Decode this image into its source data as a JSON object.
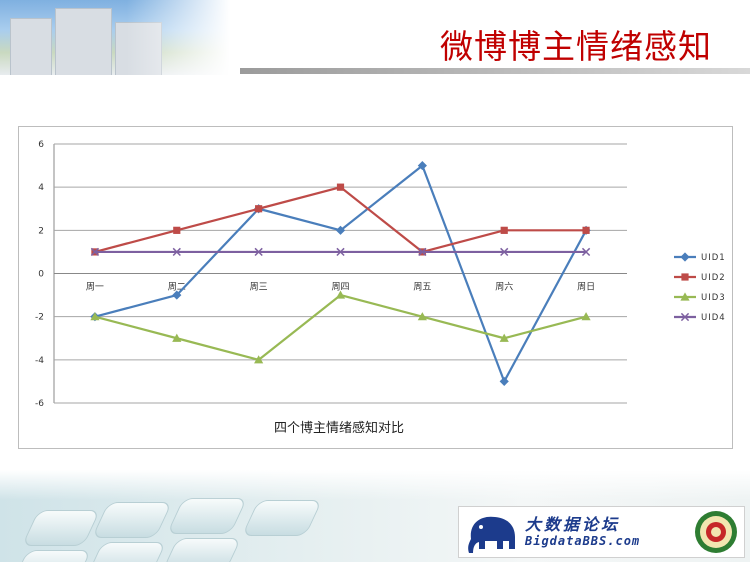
{
  "slide": {
    "title": "微博博主情绪感知",
    "logo": {
      "name": "大数据论坛",
      "site": "BigdataBBS.com"
    }
  },
  "colors": {
    "title": "#c00000",
    "uid1": "#4a7ebb",
    "uid2": "#be4b48",
    "uid3": "#98b954",
    "uid4": "#7d60a0"
  },
  "chart_data": {
    "type": "line",
    "title": "四个博主情绪感知对比",
    "categories": [
      "周一",
      "周二",
      "周三",
      "周四",
      "周五",
      "周六",
      "周日"
    ],
    "ylim": [
      -6,
      6
    ],
    "yticks": [
      6,
      4,
      2,
      0,
      -2,
      -4,
      -6
    ],
    "grid": true,
    "legend": "right",
    "series": [
      {
        "name": "UID1",
        "marker": "diamond",
        "color": "#4a7ebb",
        "values": [
          -2,
          -1,
          3,
          2,
          5,
          -5,
          2
        ]
      },
      {
        "name": "UID2",
        "marker": "square",
        "color": "#be4b48",
        "values": [
          1,
          2,
          3,
          4,
          1,
          2,
          2
        ]
      },
      {
        "name": "UID3",
        "marker": "triangle",
        "color": "#98b954",
        "values": [
          -2,
          -3,
          -4,
          -1,
          -2,
          -3,
          -2
        ]
      },
      {
        "name": "UID4",
        "marker": "x",
        "color": "#7d60a0",
        "values": [
          1,
          1,
          1,
          1,
          1,
          1,
          1
        ]
      }
    ]
  }
}
